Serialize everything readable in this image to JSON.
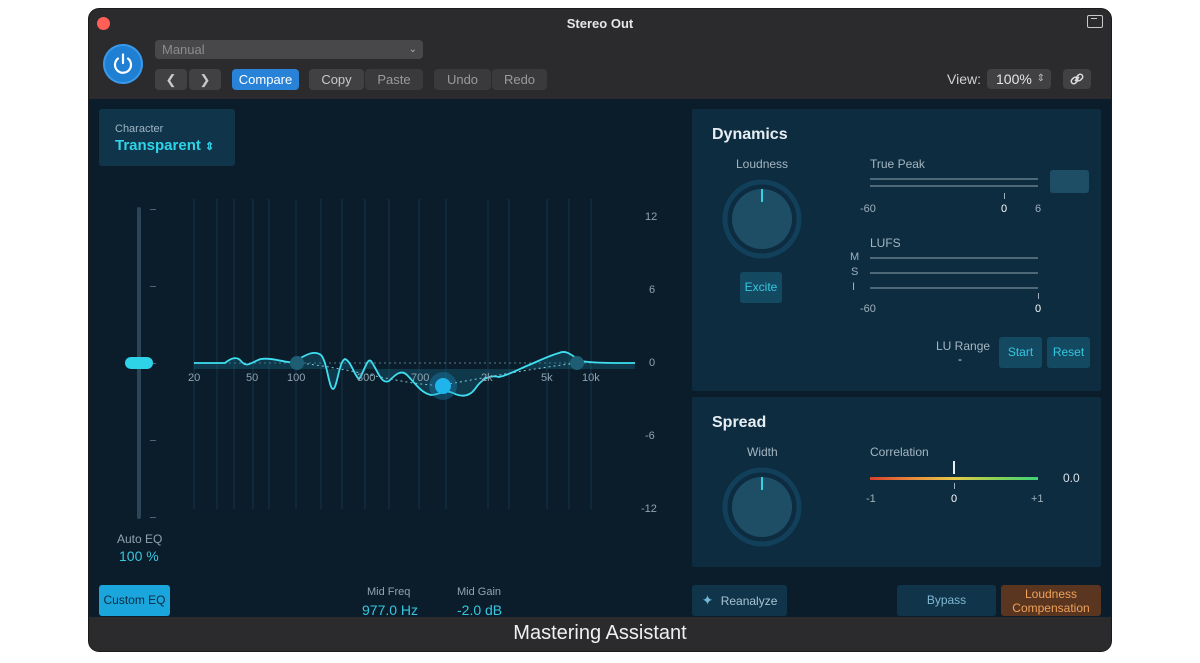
{
  "window": {
    "title": "Stereo Out",
    "footer_title": "Mastering Assistant"
  },
  "toolbar": {
    "preset": "Manual",
    "compare": "Compare",
    "copy": "Copy",
    "paste": "Paste",
    "undo": "Undo",
    "redo": "Redo",
    "view_label": "View:",
    "view_value": "100%"
  },
  "eq": {
    "character_label": "Character",
    "character_value": "Transparent",
    "freq_ticks": [
      "20",
      "50",
      "100",
      "300",
      "700",
      "2k",
      "5k",
      "10k"
    ],
    "gain_ticks": [
      "12",
      "6",
      "0",
      "-6",
      "-12"
    ],
    "auto_eq_label": "Auto EQ",
    "auto_eq_value": "100 %",
    "custom_eq": "Custom EQ",
    "mid_freq_label": "Mid Freq",
    "mid_freq_value": "977.0 Hz",
    "mid_gain_label": "Mid Gain",
    "mid_gain_value": "-2.0 dB"
  },
  "dynamics": {
    "title": "Dynamics",
    "loudness_label": "Loudness",
    "excite": "Excite",
    "true_peak_label": "True Peak",
    "tp_min": "-60",
    "tp_zero": "0",
    "tp_max": "6",
    "lufs_label": "LUFS",
    "lufs_rows": [
      "M",
      "S",
      "I"
    ],
    "lufs_min": "-60",
    "lufs_zero": "0",
    "lu_range_label": "LU Range",
    "lu_range_value": "-",
    "start": "Start",
    "reset": "Reset"
  },
  "spread": {
    "title": "Spread",
    "width_label": "Width",
    "correlation_label": "Correlation",
    "corr_min": "-1",
    "corr_mid": "0",
    "corr_max": "+1",
    "corr_value": "0.0"
  },
  "actions": {
    "reanalyze": "Reanalyze",
    "bypass": "Bypass",
    "loudness_comp_1": "Loudness",
    "loudness_comp_2": "Compensation"
  },
  "colors": {
    "accent": "#2fd3e8",
    "primary_button": "#2882d8",
    "compensation": "#e78a3c"
  }
}
